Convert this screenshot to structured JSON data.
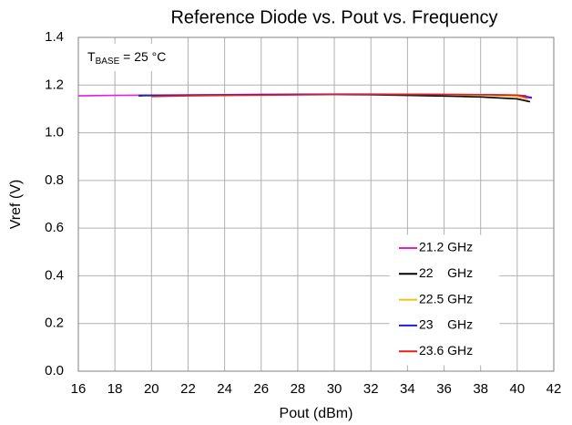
{
  "chart_data": {
    "type": "line",
    "title": "Reference Diode vs. Pout vs. Frequency",
    "xlabel": "Pout (dBm)",
    "ylabel": "Vref (V)",
    "annotation": {
      "main": "T",
      "sub": "BASE",
      "rest": " = 25 °C"
    },
    "xlim": [
      16,
      42
    ],
    "xticks": [
      16,
      18,
      20,
      22,
      24,
      26,
      28,
      30,
      32,
      34,
      36,
      38,
      40,
      42
    ],
    "ylim": [
      0,
      1.4
    ],
    "yticks": [
      {
        "value": 0,
        "label": "0.0"
      },
      0.2,
      0.4,
      0.6,
      0.8,
      {
        "value": 1,
        "label": "1.0"
      },
      1.2,
      1.4
    ],
    "grid": true,
    "legend": "lower right",
    "series": [
      {
        "name": "21.2 GHz",
        "color": "#e020e0",
        "x": [
          16,
          18,
          20,
          22,
          24,
          26,
          28,
          30,
          32,
          34,
          36,
          38,
          40,
          40.8
        ],
        "values": [
          1.155,
          1.157,
          1.158,
          1.159,
          1.16,
          1.161,
          1.162,
          1.162,
          1.162,
          1.161,
          1.16,
          1.158,
          1.155,
          1.145
        ]
      },
      {
        "name": "22    GHz",
        "color": "#000000",
        "x": [
          19.3,
          22,
          24,
          26,
          28,
          30,
          32,
          34,
          36,
          38,
          40,
          40.7
        ],
        "values": [
          1.155,
          1.157,
          1.158,
          1.159,
          1.16,
          1.16,
          1.159,
          1.157,
          1.154,
          1.15,
          1.142,
          1.13
        ]
      },
      {
        "name": "22.5 GHz",
        "color": "#f0c020",
        "x": [
          19.5,
          22,
          26,
          30,
          34,
          38,
          40,
          40.6
        ],
        "values": [
          1.156,
          1.158,
          1.16,
          1.161,
          1.161,
          1.158,
          1.152,
          1.14
        ]
      },
      {
        "name": "23    GHz",
        "color": "#2020d0",
        "x": [
          19.3,
          22,
          26,
          30,
          34,
          38,
          40,
          40.8
        ],
        "values": [
          1.157,
          1.158,
          1.16,
          1.161,
          1.161,
          1.16,
          1.158,
          1.148
        ]
      },
      {
        "name": "23.6 GHz",
        "color": "#e02020",
        "x": [
          20,
          22,
          26,
          30,
          34,
          38,
          40,
          40.5
        ],
        "values": [
          1.152,
          1.155,
          1.158,
          1.16,
          1.161,
          1.16,
          1.158,
          1.155
        ]
      }
    ]
  }
}
